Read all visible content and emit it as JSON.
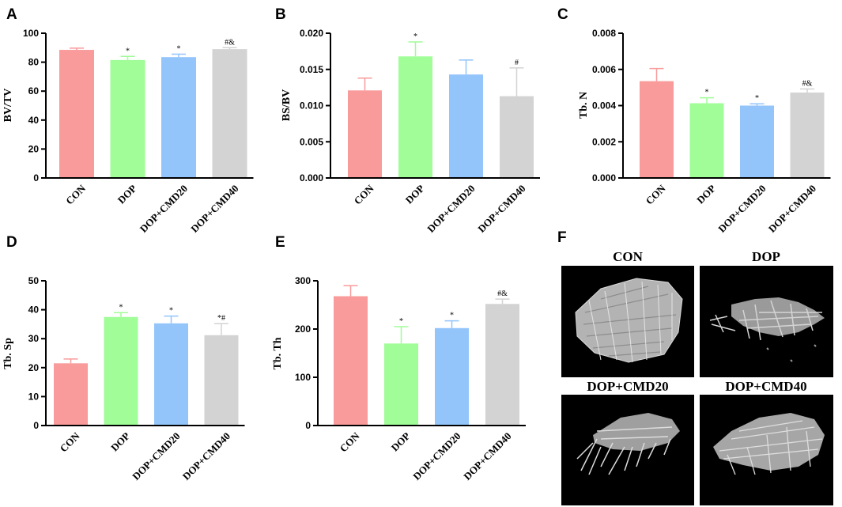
{
  "colors": {
    "CON": "#f99b9b",
    "DOP": "#a0fd98",
    "DOP+CMD20": "#93c5fb",
    "DOP+CMD40": "#d3d3d3",
    "scan_background": "#000000",
    "bone": "#c8c8c8"
  },
  "chart_data": [
    {
      "panel": "A",
      "type": "bar",
      "ylabel": "BV/TV",
      "categories": [
        "CON",
        "DOP",
        "DOP+CMD20",
        "DOP+CMD40"
      ],
      "values": [
        88.5,
        81.5,
        83.5,
        89
      ],
      "errors": [
        1.2,
        2.5,
        2.0,
        1.0
      ],
      "annotations": [
        "",
        "*",
        "*",
        "#&"
      ],
      "ylim": [
        0,
        100
      ],
      "yticks": [
        "0",
        "20",
        "40",
        "60",
        "80",
        "100"
      ]
    },
    {
      "panel": "B",
      "type": "bar",
      "ylabel": "BS/BV",
      "categories": [
        "CON",
        "DOP",
        "DOP+CMD20",
        "DOP+CMD40"
      ],
      "values": [
        0.0121,
        0.0168,
        0.0143,
        0.0113
      ],
      "errors": [
        0.0017,
        0.002,
        0.002,
        0.0039
      ],
      "annotations": [
        "",
        "*",
        "",
        "#"
      ],
      "ylim": [
        0,
        0.02
      ],
      "yticks": [
        "0.000",
        "0.005",
        "0.010",
        "0.015",
        "0.020"
      ]
    },
    {
      "panel": "C",
      "type": "bar",
      "ylabel": "Tb. N",
      "categories": [
        "CON",
        "DOP",
        "DOP+CMD20",
        "DOP+CMD40"
      ],
      "values": [
        0.00535,
        0.00413,
        0.004,
        0.00472
      ],
      "errors": [
        0.0007,
        0.0003,
        0.0001,
        0.0002
      ],
      "annotations": [
        "",
        "*",
        "*",
        "#&"
      ],
      "ylim": [
        0,
        0.008
      ],
      "yticks": [
        "0.000",
        "0.002",
        "0.004",
        "0.006",
        "0.008"
      ]
    },
    {
      "panel": "D",
      "type": "bar",
      "ylabel": "Tb. Sp",
      "categories": [
        "CON",
        "DOP",
        "DOP+CMD20",
        "DOP+CMD40"
      ],
      "values": [
        21.5,
        37.5,
        35.3,
        31.2
      ],
      "errors": [
        1.5,
        1.5,
        2.5,
        4.0
      ],
      "annotations": [
        "",
        "*",
        "*",
        "*#"
      ],
      "ylim": [
        0,
        50
      ],
      "yticks": [
        "0",
        "10",
        "20",
        "30",
        "40",
        "50"
      ]
    },
    {
      "panel": "E",
      "type": "bar",
      "ylabel": "Tb. Th",
      "categories": [
        "CON",
        "DOP",
        "DOP+CMD20",
        "DOP+CMD40"
      ],
      "values": [
        268,
        170,
        202,
        252
      ],
      "errors": [
        22,
        35,
        15,
        10
      ],
      "annotations": [
        "",
        "*",
        "*",
        "#&"
      ],
      "ylim": [
        0,
        300
      ],
      "yticks": [
        "0",
        "100",
        "200",
        "300"
      ]
    }
  ],
  "panel_f": {
    "label": "F",
    "images": [
      "CON",
      "DOP",
      "DOP+CMD20",
      "DOP+CMD40"
    ]
  }
}
